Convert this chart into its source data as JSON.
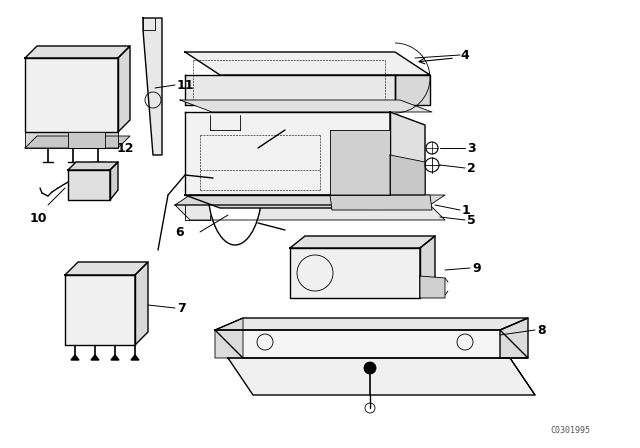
{
  "background_color": "#ffffff",
  "line_color": "#000000",
  "watermark": "C0301995",
  "figsize": [
    6.4,
    4.48
  ],
  "dpi": 100
}
